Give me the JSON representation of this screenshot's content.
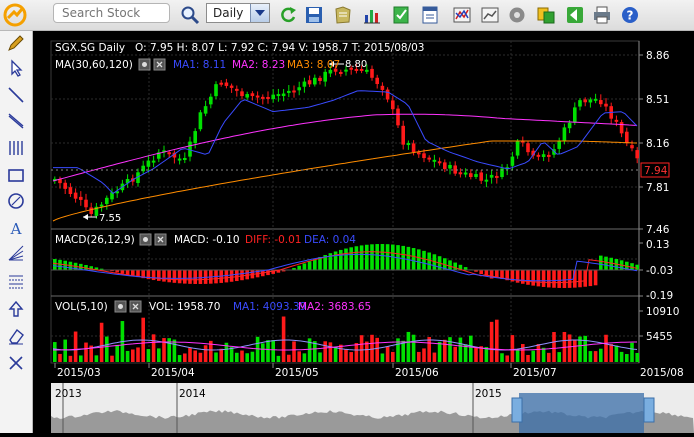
{
  "toolbar": {
    "search_placeholder": "Search Stock",
    "period": "Daily",
    "icons": [
      "search-icon",
      "refresh-icon",
      "save-icon",
      "open-icon",
      "bar-chart-icon",
      "checklist-icon",
      "notes-icon",
      "compare-icon",
      "line-icon",
      "settings-gear-icon",
      "contrast-icon",
      "back-icon",
      "print-icon",
      "help-icon"
    ]
  },
  "sidebar": {
    "tools": [
      "edit-tool-icon",
      "pointer-icon",
      "line-tool-icon",
      "ray-tool-icon",
      "vertical-lines-icon",
      "rectangle-icon",
      "ellipse-icon",
      "text-tool-icon",
      "fan-tool-icon",
      "grid-tool-icon",
      "arrow-up-icon",
      "eraser-icon",
      "cross-tool-icon"
    ]
  },
  "price_panel": {
    "symbol": "SGX.SG Daily",
    "ohlc": "O: 7.95 H: 8.07 L: 7.92 C: 7.94 V: 1958.7 T: 2015/08/03",
    "ma_title": "MA(30,60,120)",
    "ma1": "MA1: 8.11",
    "ma2": "MA2: 8.23",
    "ma3": "MA3: 8.07",
    "high_marker": "8.80",
    "low_marker": "7.55",
    "last_price": "7.94",
    "axis": [
      "8.86",
      "8.51",
      "8.16",
      "7.81",
      "7.46"
    ]
  },
  "macd_panel": {
    "title": "MACD(26,12,9)",
    "macd": "MACD: -0.10",
    "diff": "DIFF: -0.01",
    "dea": "DEA: 0.04",
    "axis": [
      "0.13",
      "-0.03",
      "-0.19"
    ]
  },
  "vol_panel": {
    "title": "VOL(5,10)",
    "vol": "VOL: 1958.70",
    "ma1": "MA1: 4093.39",
    "ma2": "MA2: 3683.65",
    "axis": [
      "10910",
      "5455"
    ]
  },
  "time_axis": [
    "2015/03",
    "2015/04",
    "2015/05",
    "2015/06",
    "2015/07",
    "2015/08"
  ],
  "navigator": [
    "2013",
    "2014",
    "2015"
  ],
  "colors": {
    "up": "#00e000",
    "down": "#ff1a1a",
    "ma1": "#3a4bff",
    "ma2": "#ff33ff",
    "ma3": "#ff8c00",
    "grid": "#303030"
  }
}
